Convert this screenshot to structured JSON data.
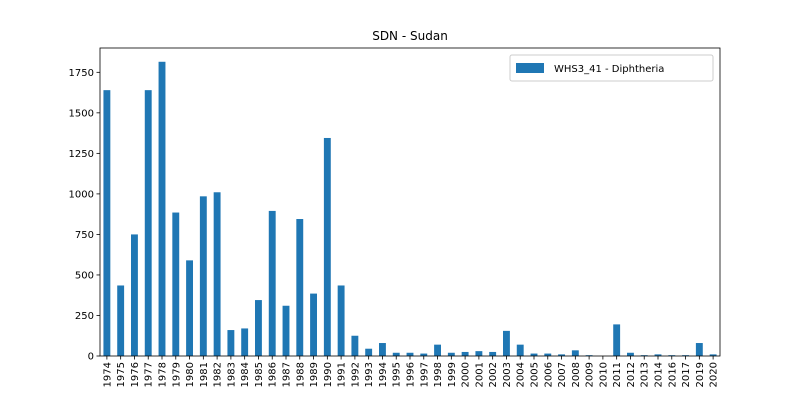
{
  "chart_data": {
    "type": "bar",
    "title": "SDN - Sudan",
    "xlabel": "",
    "ylabel": "",
    "ylim": [
      0,
      1900
    ],
    "yticks": [
      0,
      250,
      500,
      750,
      1000,
      1250,
      1500,
      1750
    ],
    "ytick_labels": [
      "0",
      "250",
      "500",
      "750",
      "1000",
      "1250",
      "1500",
      "1750"
    ],
    "grid": false,
    "legend_position": "top-right",
    "categories": [
      "1974",
      "1975",
      "1976",
      "1977",
      "1978",
      "1979",
      "1980",
      "1981",
      "1982",
      "1983",
      "1984",
      "1985",
      "1986",
      "1987",
      "1988",
      "1989",
      "1990",
      "1991",
      "1992",
      "1993",
      "1994",
      "1995",
      "1996",
      "1997",
      "1998",
      "1999",
      "2000",
      "2001",
      "2002",
      "2003",
      "2004",
      "2005",
      "2006",
      "2007",
      "2008",
      "2009",
      "2010",
      "2011",
      "2012",
      "2013",
      "2014",
      "2016",
      "2017",
      "2019",
      "2020"
    ],
    "series": [
      {
        "name": "WHS3_41 - Diphtheria",
        "color": "#1f77b4",
        "values": [
          1640,
          435,
          750,
          1640,
          1815,
          885,
          590,
          985,
          1010,
          160,
          170,
          345,
          895,
          310,
          845,
          385,
          1345,
          435,
          125,
          45,
          80,
          20,
          20,
          15,
          70,
          20,
          25,
          30,
          25,
          155,
          70,
          15,
          15,
          10,
          35,
          5,
          0,
          195,
          20,
          5,
          10,
          5,
          5,
          80,
          10
        ]
      }
    ]
  }
}
